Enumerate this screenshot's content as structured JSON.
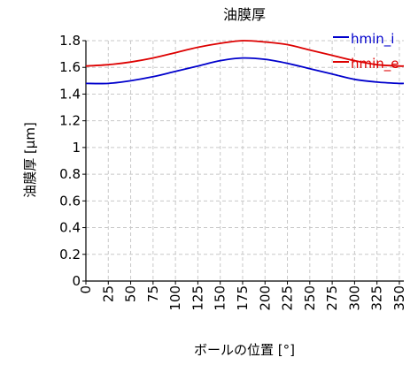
{
  "chart_data": {
    "type": "line",
    "title": "油膜厚",
    "xlabel": "ボールの位置 [°]",
    "ylabel": "油膜厚 [μm]",
    "xlim": [
      0,
      355
    ],
    "ylim": [
      0,
      1.8
    ],
    "xticks": [
      0,
      25,
      50,
      75,
      100,
      125,
      150,
      175,
      200,
      225,
      250,
      275,
      300,
      325,
      350
    ],
    "yticks": [
      0,
      0.2,
      0.4,
      0.6,
      0.8,
      1,
      1.2,
      1.4,
      1.6,
      1.8
    ],
    "ytick_labels": [
      "0",
      "0.2",
      "0.4",
      "0.6",
      "0.8",
      "1",
      "1.2",
      "1.4",
      "1.6",
      "1.8"
    ],
    "grid": true,
    "legend_position": "top-right",
    "series": [
      {
        "name": "hmin_i",
        "color": "#0000cc",
        "x": [
          0,
          25,
          50,
          75,
          100,
          125,
          150,
          175,
          200,
          225,
          250,
          275,
          300,
          325,
          350,
          355
        ],
        "y": [
          1.48,
          1.48,
          1.5,
          1.53,
          1.57,
          1.61,
          1.65,
          1.67,
          1.66,
          1.63,
          1.59,
          1.55,
          1.51,
          1.49,
          1.48,
          1.48
        ]
      },
      {
        "name": "hmin_e",
        "color": "#dd0000",
        "x": [
          0,
          25,
          50,
          75,
          100,
          125,
          150,
          175,
          200,
          225,
          250,
          275,
          300,
          325,
          350,
          355
        ],
        "y": [
          1.61,
          1.62,
          1.64,
          1.67,
          1.71,
          1.75,
          1.78,
          1.8,
          1.79,
          1.77,
          1.73,
          1.69,
          1.65,
          1.62,
          1.61,
          1.61
        ]
      }
    ]
  }
}
